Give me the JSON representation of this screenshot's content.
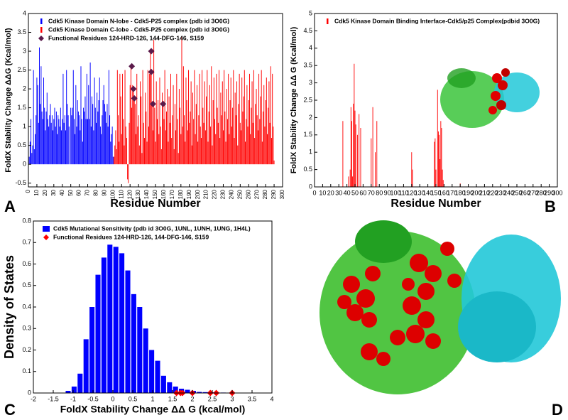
{
  "chart_data": [
    {
      "type": "bar",
      "panel": "A",
      "x_label": "Residue Number",
      "y_label": "FoldX  Stability Change  ΔΔG (Kcal/mol)",
      "xlim": [
        0,
        300
      ],
      "xticks": [
        0,
        10,
        20,
        30,
        40,
        50,
        60,
        70,
        80,
        90,
        100,
        110,
        120,
        130,
        140,
        150,
        160,
        170,
        180,
        190,
        200,
        210,
        220,
        230,
        240,
        250,
        260,
        270,
        280,
        290,
        300
      ],
      "ylim": [
        -0.6,
        4
      ],
      "yticks": [
        -0.5,
        0,
        0.5,
        1,
        1.5,
        2,
        2.5,
        3,
        3.5,
        4
      ],
      "x_tick_rotate": true,
      "series": [
        {
          "name": "Cdk5 Kinase Domain N-lobe - Cdk5-P25 complex (pdb id 3O0G)",
          "color": "#0000ff",
          "x": [
            1,
            2,
            3,
            4,
            5,
            6,
            7,
            8,
            9,
            10,
            11,
            12,
            13,
            14,
            15,
            16,
            17,
            18,
            19,
            20,
            21,
            22,
            23,
            24,
            25,
            26,
            27,
            28,
            29,
            30,
            31,
            32,
            33,
            34,
            35,
            36,
            37,
            38,
            39,
            40,
            41,
            42,
            43,
            44,
            45,
            46,
            47,
            48,
            49,
            50,
            51,
            52,
            53,
            54,
            55,
            56,
            57,
            58,
            59,
            60,
            61,
            62,
            63,
            64,
            65,
            66,
            67,
            68,
            69,
            70,
            71,
            72,
            73,
            74,
            75,
            76,
            77,
            78,
            79,
            80,
            81,
            82,
            83,
            84,
            85,
            86,
            87,
            88,
            89,
            90,
            91,
            92,
            93,
            94,
            95,
            96,
            97,
            98,
            99,
            100
          ],
          "values": [
            0.2,
            0.6,
            1.2,
            0.3,
            0.5,
            2.5,
            0.4,
            0.8,
            1.3,
            2.3,
            2.1,
            1.1,
            3.1,
            1.6,
            2.6,
            1.4,
            1.2,
            2.3,
            1.5,
            0.9,
            1.4,
            1.9,
            1.2,
            1.0,
            1.3,
            1.6,
            1.1,
            1.3,
            0.9,
            1.2,
            1.5,
            1.0,
            1.4,
            0.8,
            1.3,
            1.2,
            1.0,
            1.5,
            0.9,
            1.2,
            2.4,
            1.1,
            1.3,
            0.9,
            2.5,
            1.6,
            1.3,
            1.0,
            0,
            1.5,
            1.3,
            1.5,
            2.5,
            1.2,
            0.8,
            2.1,
            1.0,
            1.7,
            1.4,
            1.3,
            0.9,
            2.6,
            1.2,
            0.6,
            1.5,
            1.4,
            1.8,
            1.2,
            2.4,
            1.2,
            2.1,
            1.2,
            2.7,
            1.0,
            1.8,
            1.6,
            0.9,
            2.3,
            1.5,
            1.1,
            1.9,
            1.4,
            1.7,
            2.3,
            1.0,
            0.8,
            1.3,
            1.7,
            2.1,
            1.6,
            1.4,
            1.1,
            1.6,
            1.0,
            2.5,
            1.3,
            0.6,
            0.8,
            1.0,
            0.2
          ]
        },
        {
          "name": "Cdk5 Kinase Domain C-lobe - Cdk5-P25 complex (pdb id 3O0G)",
          "color": "#ff0000",
          "x": [
            101,
            102,
            103,
            104,
            105,
            106,
            107,
            108,
            109,
            110,
            111,
            112,
            113,
            114,
            115,
            116,
            117,
            118,
            119,
            120,
            121,
            122,
            123,
            124,
            125,
            126,
            127,
            128,
            129,
            130,
            131,
            132,
            133,
            134,
            135,
            136,
            137,
            138,
            139,
            140,
            141,
            142,
            143,
            144,
            145,
            146,
            147,
            148,
            149,
            150,
            151,
            152,
            153,
            154,
            155,
            156,
            157,
            158,
            159,
            160,
            161,
            162,
            163,
            164,
            165,
            166,
            167,
            168,
            169,
            170,
            171,
            172,
            173,
            174,
            175,
            176,
            177,
            178,
            179,
            180,
            181,
            182,
            183,
            184,
            185,
            186,
            187,
            188,
            189,
            190,
            191,
            192,
            193,
            194,
            195,
            196,
            197,
            198,
            199,
            200,
            201,
            202,
            203,
            204,
            205,
            206,
            207,
            208,
            209,
            210,
            211,
            212,
            213,
            214,
            215,
            216,
            217,
            218,
            219,
            220,
            221,
            222,
            223,
            224,
            225,
            226,
            227,
            228,
            229,
            230,
            231,
            232,
            233,
            234,
            235,
            236,
            237,
            238,
            239,
            240,
            241,
            242,
            243,
            244,
            245,
            246,
            247,
            248,
            249,
            250,
            251,
            252,
            253,
            254,
            255,
            256,
            257,
            258,
            259,
            260,
            261,
            262,
            263,
            264,
            265,
            266,
            267,
            268,
            269,
            270,
            271,
            272,
            273,
            274,
            275,
            276,
            277,
            278,
            279,
            280,
            281,
            282,
            283,
            284,
            285,
            286,
            287,
            288,
            289,
            290
          ],
          "values": [
            0.2,
            0.5,
            0.9,
            0.4,
            2.5,
            1.3,
            0.6,
            2.4,
            1.8,
            0.8,
            2.4,
            1.2,
            0.5,
            2.5,
            1.0,
            0.7,
            -0.4,
            -0.5,
            1.1,
            2.1,
            2.6,
            1.5,
            2.1,
            2.0,
            1.7,
            1.6,
            0.8,
            2.4,
            1.0,
            1.3,
            0.5,
            2.2,
            1.8,
            0.3,
            2.5,
            1.1,
            0.7,
            1.9,
            1.4,
            0.6,
            2.5,
            1.0,
            2.4,
            3.0,
            2.4,
            1.6,
            0.9,
            3.3,
            1.5,
            0.6,
            2.2,
            1.2,
            1.7,
            0.8,
            2.3,
            1.0,
            0.4,
            1.9,
            1.6,
            1.2,
            2.5,
            0.9,
            1.4,
            2.0,
            0.6,
            1.8,
            1.1,
            2.4,
            0.7,
            1.3,
            2.1,
            0.4,
            1.6,
            0.9,
            2.4,
            1.2,
            0.3,
            2.0,
            1.5,
            0.8,
            3.4,
            1.0,
            2.6,
            1.3,
            0.6,
            2.3,
            1.7,
            0.9,
            2.5,
            1.1,
            1.4,
            2.2,
            0.5,
            1.9,
            1.2,
            2.5,
            0.8,
            1.6,
            2.1,
            0.6,
            1.3,
            2.4,
            1.0,
            0.7,
            2.5,
            1.5,
            1.1,
            2.2,
            0.9,
            1.8,
            2.5,
            0.6,
            1.4,
            2.1,
            1.0,
            2.6,
            0.5,
            1.7,
            2.3,
            1.2,
            0.8,
            2.4,
            1.5,
            1.1,
            2.5,
            0.7,
            1.9,
            1.3,
            2.2,
            0.9,
            2.5,
            1.4,
            0.6,
            2.0,
            1.2,
            2.4,
            0.8,
            1.7,
            2.3,
            1.0,
            1.5,
            2.5,
            0.7,
            1.9,
            1.3,
            2.2,
            0.5,
            1.6,
            2.4,
            1.1,
            0.9,
            2.3,
            1.4,
            1.8,
            2.5,
            0.6,
            1.2,
            2.1,
            1.0,
            1.7,
            2.4,
            0.8,
            1.5,
            2.2,
            1.1,
            2.5,
            0.7,
            1.6,
            2.0,
            1.3,
            0.9,
            2.4,
            1.2,
            1.8,
            2.5,
            0.6,
            1.4,
            2.1,
            1.0,
            1.7,
            2.3,
            0.8,
            1.5,
            2.2,
            1.1,
            2.6,
            0.7,
            2.4,
            1.0,
            0.1
          ]
        },
        {
          "name": "Functional Residues  124-HRD-126, 144-DFG-146, S159",
          "color": "#5a1a4a",
          "kind": "scatter",
          "x": [
            122,
            124,
            125,
            145,
            145,
            147,
            159
          ],
          "values": [
            2.6,
            2.0,
            1.75,
            3.0,
            2.45,
            1.6,
            1.6
          ]
        }
      ]
    },
    {
      "type": "bar",
      "panel": "B",
      "x_label": "Residue Number",
      "y_label": "FoldX  Stability Change  ΔΔ G (Kcal/mol)",
      "xlim": [
        0,
        300
      ],
      "xticks": [
        0,
        10,
        20,
        30,
        40,
        50,
        60,
        70,
        80,
        90,
        100,
        110,
        120,
        130,
        140,
        150,
        160,
        170,
        180,
        190,
        200,
        210,
        220,
        230,
        240,
        250,
        260,
        270,
        280,
        290,
        300
      ],
      "ylim": [
        0,
        5
      ],
      "yticks": [
        0,
        0.5,
        1,
        1.5,
        2,
        2.5,
        3,
        3.5,
        4,
        4.5,
        5
      ],
      "x_tick_rotate": false,
      "series": [
        {
          "name": "Cdk5 Kinase Domain Binding Interface-Cdk5/p25 Complex(pdbid 3O0G)",
          "color": "#ff0000",
          "x": [
            35,
            42,
            44,
            45,
            46,
            47,
            48,
            49,
            50,
            51,
            53,
            55,
            57,
            70,
            72,
            75,
            77,
            120,
            121,
            148,
            149,
            150,
            152,
            153,
            154,
            155,
            156,
            157,
            158,
            159,
            180
          ],
          "values": [
            1.9,
            0.3,
            0.5,
            2.3,
            1.9,
            0.3,
            2.4,
            3.55,
            2.2,
            1.8,
            1.5,
            2.1,
            1.7,
            1.4,
            2.3,
            1.0,
            1.9,
            1.0,
            0.5,
            1.3,
            1.4,
            0.5,
            2.8,
            1.6,
            1.5,
            0.8,
            1.9,
            1.7,
            0.5,
            0.2,
            0.1
          ]
        }
      ]
    },
    {
      "type": "histogram",
      "panel": "C",
      "x_label": "FoldX Stability Change ΔΔ G (kcal/mol)",
      "y_label": "Density of States",
      "xlim": [
        -2,
        4
      ],
      "xticks": [
        -2,
        -1.5,
        -1,
        -0.5,
        0,
        0.5,
        1,
        1.5,
        2,
        2.5,
        3,
        3.5,
        4
      ],
      "ylim": [
        0,
        0.8
      ],
      "yticks": [
        0,
        0.1,
        0.2,
        0.3,
        0.4,
        0.5,
        0.6,
        0.7,
        0.8
      ],
      "series": [
        {
          "name": "Cdk5 Mutational  Sensitivity (pdb id 3O0G, 1UNL, 1UNH, 1UNG, 1H4L)",
          "color": "#0000ff",
          "bins": [
            -1.2,
            -1.05,
            -0.9,
            -0.75,
            -0.6,
            -0.45,
            -0.3,
            -0.15,
            0,
            0.15,
            0.3,
            0.45,
            0.6,
            0.75,
            0.9,
            1.05,
            1.2,
            1.35,
            1.5,
            1.65,
            1.8,
            1.95,
            2.1,
            2.25,
            2.4,
            2.55,
            2.7,
            2.85,
            3.0
          ],
          "counts": [
            0.01,
            0.03,
            0.09,
            0.25,
            0.4,
            0.55,
            0.63,
            0.69,
            0.68,
            0.65,
            0.57,
            0.46,
            0.4,
            0.3,
            0.2,
            0.15,
            0.08,
            0.05,
            0.03,
            0.02,
            0.015,
            0.01,
            0.005,
            0.004,
            0.003,
            0.002,
            0.002,
            0.001
          ]
        },
        {
          "name": "Functional Residues  124-HRD-126, 144-DFG-146, S159",
          "color": "#ff0000",
          "kind": "scatter",
          "x": [
            1.6,
            1.7,
            1.75,
            2.0,
            2.45,
            2.6,
            3.0
          ],
          "values": [
            0,
            0,
            0,
            0,
            0,
            0,
            0
          ]
        }
      ]
    }
  ],
  "panel_d": {
    "label": "D"
  }
}
